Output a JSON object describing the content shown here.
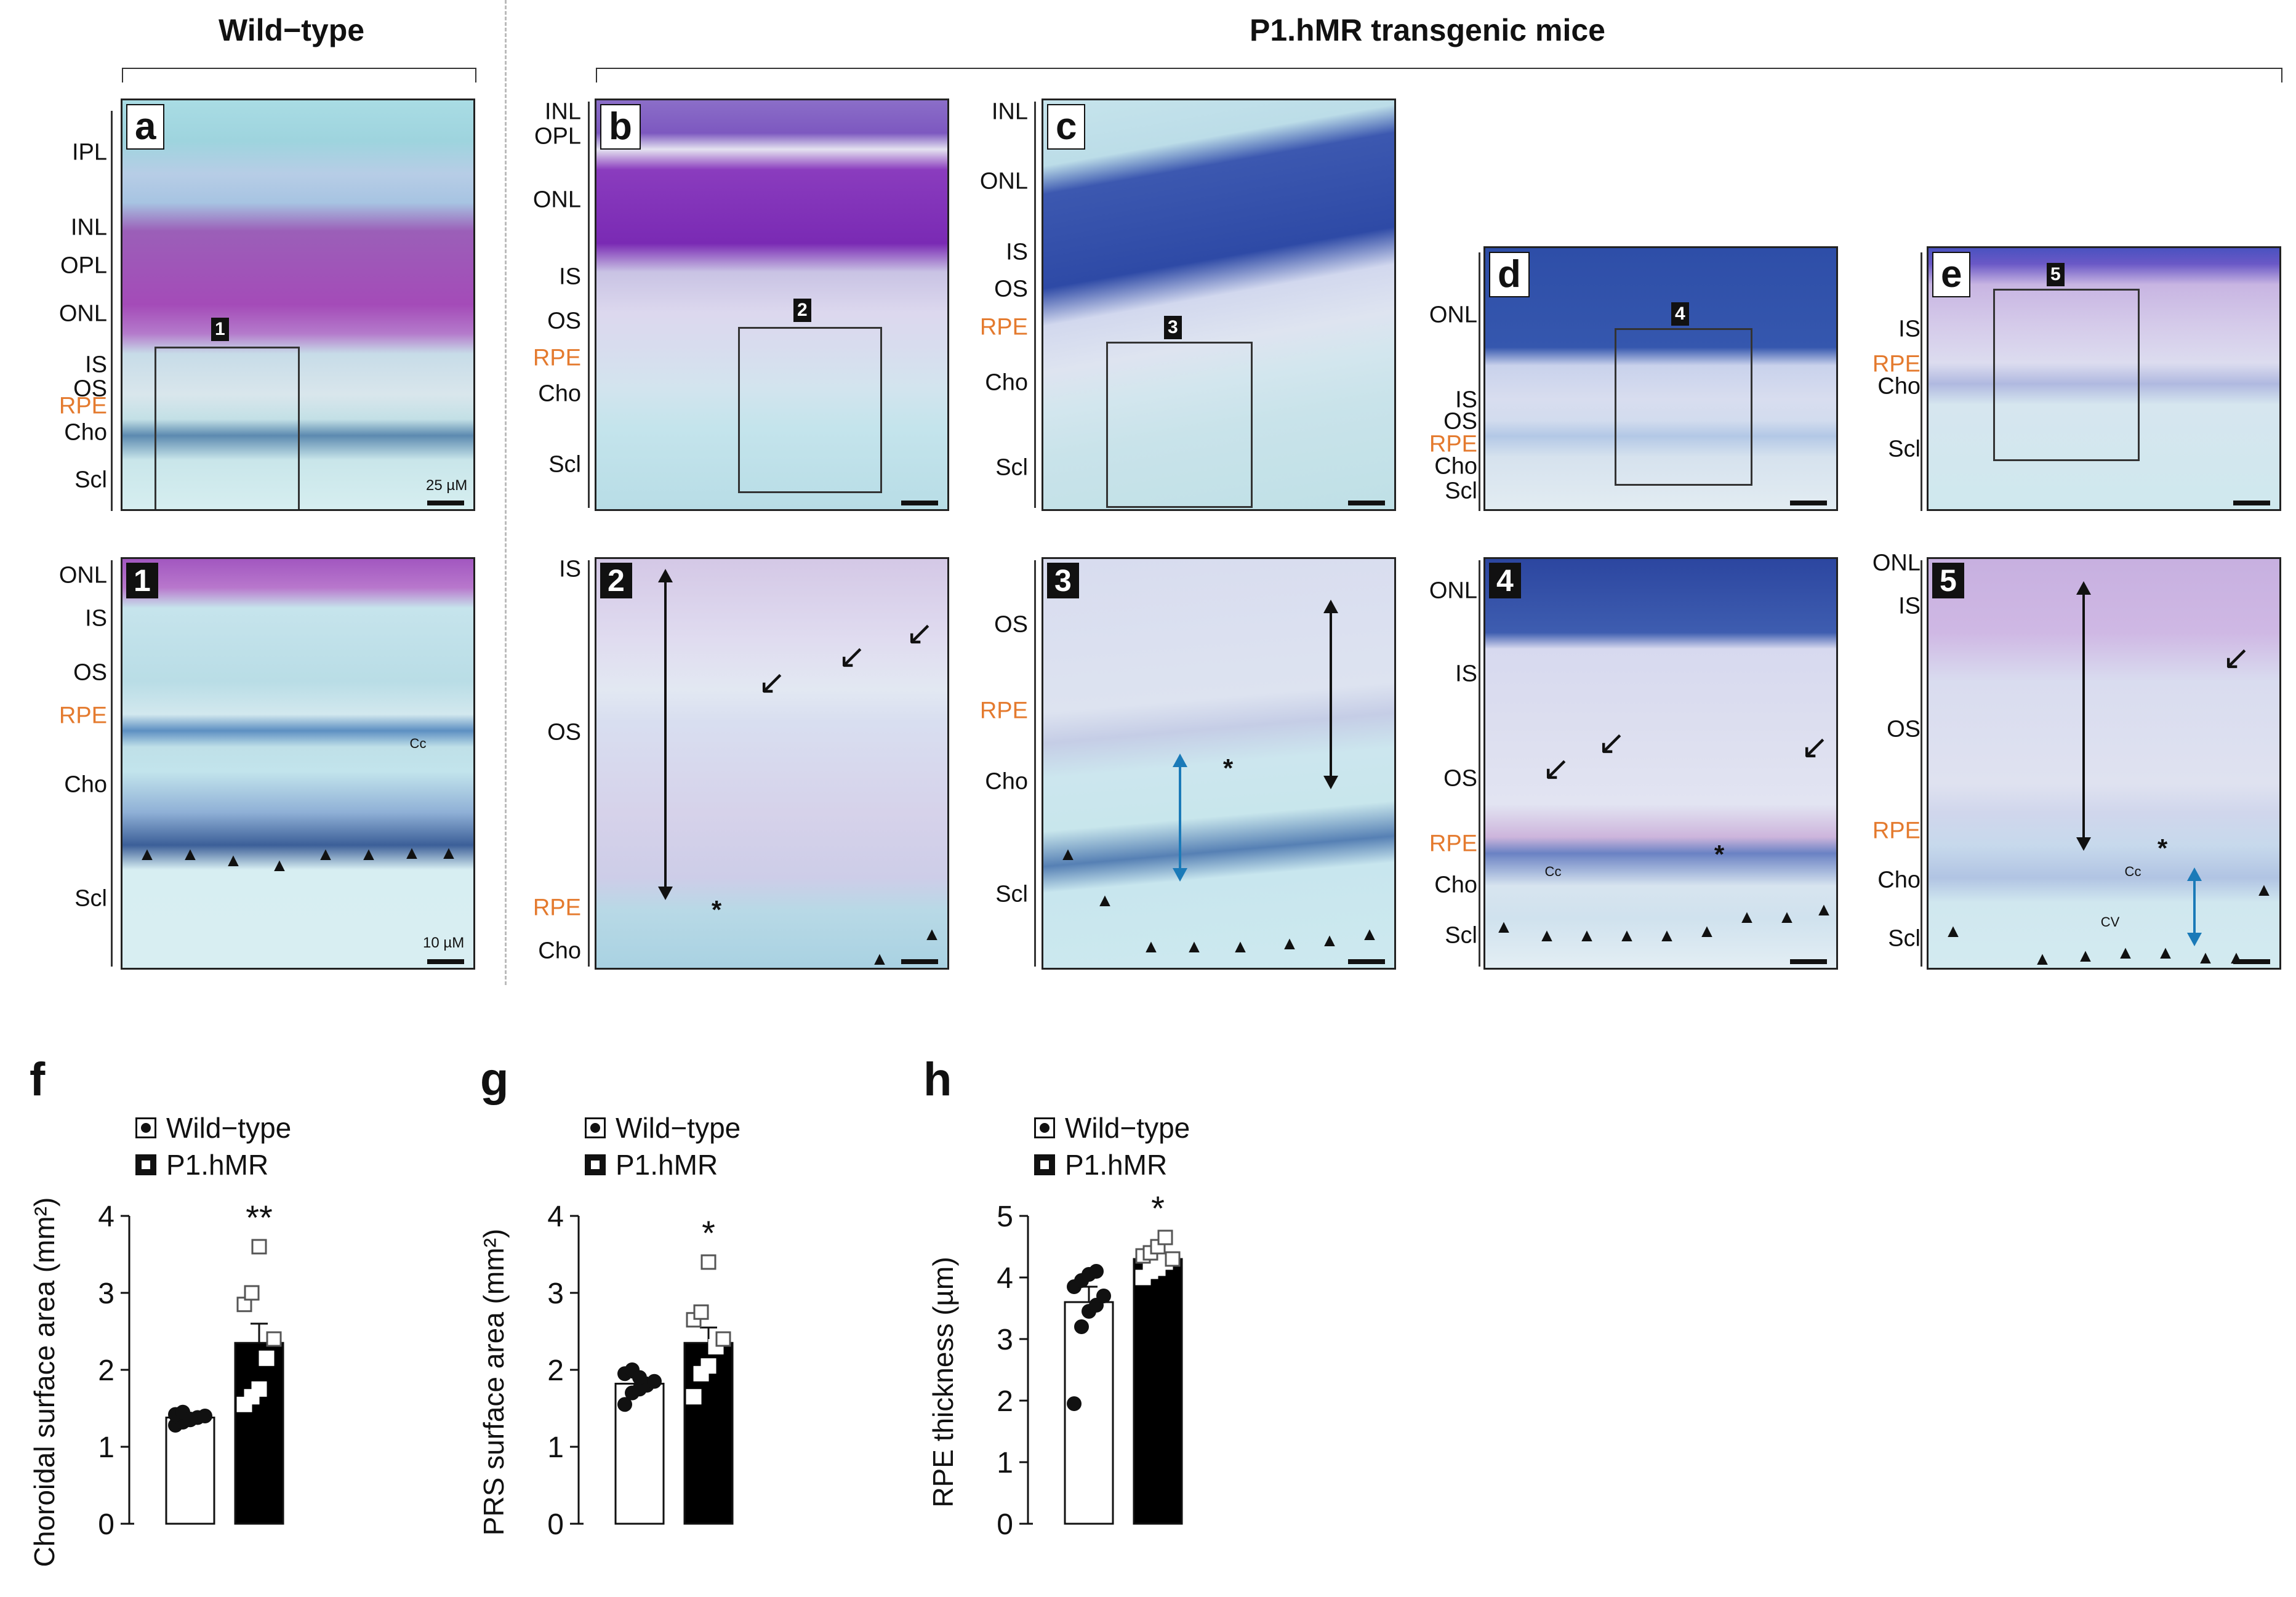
{
  "headers": {
    "wildtype": "Wild−type",
    "transgenic": "P1.hMR transgenic mice"
  },
  "panels_top": [
    {
      "id": "a",
      "label": "a",
      "layers": [
        "IPL",
        "INL",
        "OPL",
        "ONL",
        "IS",
        "OS",
        "RPE",
        "Cho",
        "Scl"
      ],
      "box": "1",
      "scale": "25 µM"
    },
    {
      "id": "b",
      "label": "b",
      "layers": [
        "INL",
        "OPL",
        "ONL",
        "IS",
        "OS",
        "RPE",
        "Cho",
        "Scl"
      ],
      "box": "2"
    },
    {
      "id": "c",
      "label": "c",
      "layers": [
        "INL",
        "ONL",
        "IS",
        "OS",
        "RPE",
        "Cho",
        "Scl"
      ],
      "box": "3"
    },
    {
      "id": "d",
      "label": "d",
      "layers": [
        "ONL",
        "IS",
        "OS",
        "RPE",
        "Cho",
        "Scl"
      ],
      "box": "4"
    },
    {
      "id": "e",
      "label": "e",
      "layers": [
        "IS",
        "RPE",
        "Cho",
        "Scl"
      ],
      "box": "5"
    }
  ],
  "panels_bottom": [
    {
      "id": "1",
      "label": "1",
      "layers": [
        "ONL",
        "IS",
        "OS",
        "RPE",
        "Cho",
        "Scl"
      ],
      "scale": "10 µM",
      "cc": "Cc"
    },
    {
      "id": "2",
      "label": "2",
      "layers": [
        "IS",
        "OS",
        "RPE",
        "Cho"
      ]
    },
    {
      "id": "3",
      "label": "3",
      "layers": [
        "OS",
        "RPE",
        "Cho",
        "Scl"
      ]
    },
    {
      "id": "4",
      "label": "4",
      "layers": [
        "ONL",
        "IS",
        "OS",
        "RPE",
        "Cho",
        "Scl"
      ],
      "cc": "Cc"
    },
    {
      "id": "5",
      "label": "5",
      "layers": [
        "ONL",
        "IS",
        "OS",
        "RPE",
        "Cho",
        "Scl"
      ],
      "cc": "Cc",
      "cv": "CV"
    }
  ],
  "legend": {
    "wildtype": "Wild−type",
    "p1hmr": "P1.hMR"
  },
  "chart_data": [
    {
      "type": "bar",
      "panel": "f",
      "ylabel": "Choroidal surface area (mm²)",
      "categories": [
        "Wild−type",
        "P1.hMR"
      ],
      "values": [
        1.38,
        2.35
      ],
      "error": [
        0.05,
        0.25
      ],
      "ylim": [
        0,
        4
      ],
      "yticks": [
        0,
        1,
        2,
        3,
        4
      ],
      "significance": "**",
      "points": [
        [
          1.28,
          1.32,
          1.35,
          1.38,
          1.4,
          1.42,
          1.45,
          1.36
        ],
        [
          1.55,
          1.65,
          1.75,
          2.15,
          2.4,
          2.85,
          3.0,
          3.6
        ]
      ]
    },
    {
      "type": "bar",
      "panel": "g",
      "ylabel": "PRS surface area (mm²)",
      "categories": [
        "Wild−type",
        "P1.hMR"
      ],
      "values": [
        1.82,
        2.35
      ],
      "error": [
        0.08,
        0.2
      ],
      "ylim": [
        0,
        4
      ],
      "yticks": [
        0,
        1,
        2,
        3,
        4
      ],
      "significance": "*",
      "points": [
        [
          1.55,
          1.7,
          1.75,
          1.8,
          1.85,
          1.95,
          2.0,
          1.9
        ],
        [
          1.65,
          1.95,
          2.05,
          2.3,
          2.4,
          2.65,
          2.75,
          3.4
        ]
      ]
    },
    {
      "type": "bar",
      "panel": "h",
      "ylabel": "RPE thickness (µm)",
      "categories": [
        "Wild−type",
        "P1.hMR"
      ],
      "values": [
        3.6,
        4.3
      ],
      "error": [
        0.25,
        0.1
      ],
      "ylim": [
        0,
        5
      ],
      "yticks": [
        0,
        1,
        2,
        3,
        4,
        5
      ],
      "significance": "*",
      "points": [
        [
          1.95,
          3.2,
          3.45,
          3.55,
          3.7,
          3.85,
          3.95,
          4.05,
          4.1
        ],
        [
          4.0,
          4.1,
          4.15,
          4.25,
          4.3,
          4.35,
          4.4,
          4.5,
          4.65
        ]
      ]
    }
  ],
  "colors": {
    "rpe_label": "#e47a2e",
    "blue_arrow": "#1a7ab8",
    "bar_wt": "#ffffff",
    "bar_tg": "#000000"
  }
}
